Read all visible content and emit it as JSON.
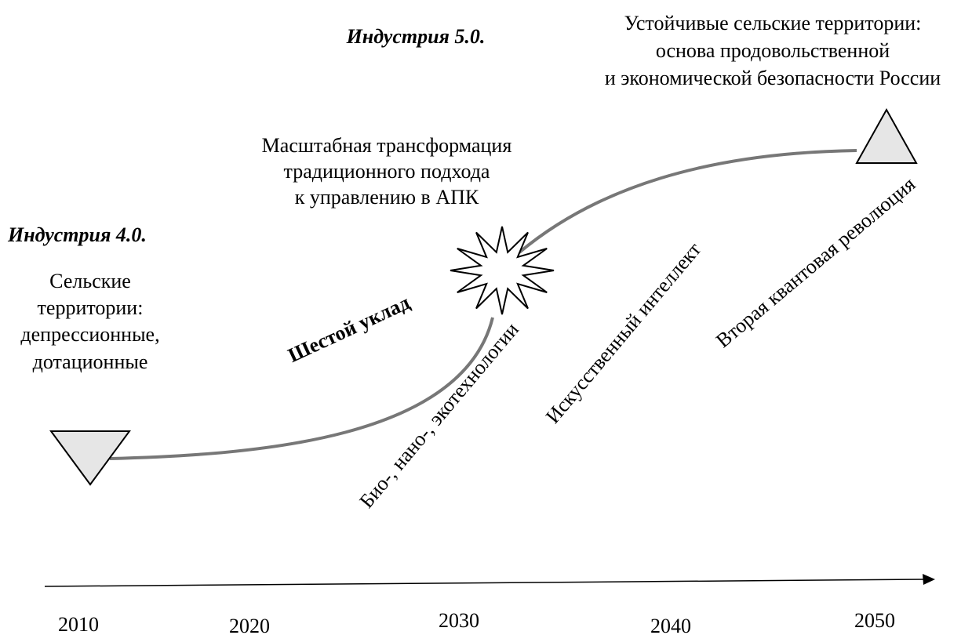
{
  "industry5": "Индустрия 5.0.",
  "goal": {
    "lines": [
      "Устойчивые сельские территории:",
      "основа продовольственной",
      "и экономической безопасности России"
    ]
  },
  "transformation": {
    "lines": [
      "Масштабная трансформация",
      "традиционного подхода",
      "к управлению в АПК"
    ]
  },
  "industry4": "Индустрия 4.0.",
  "start": {
    "lines": [
      "Сельские",
      "территории:",
      "депрессионные,",
      "дотационные"
    ]
  },
  "sixth_order": "Шестой уклад",
  "technologies": [
    "Био-, нано-, экотехнологии",
    "Искусственный интеллект",
    "Вторая квантовая революция"
  ],
  "timeline": {
    "years": [
      "2010",
      "2020",
      "2030",
      "2040",
      "2050"
    ]
  }
}
